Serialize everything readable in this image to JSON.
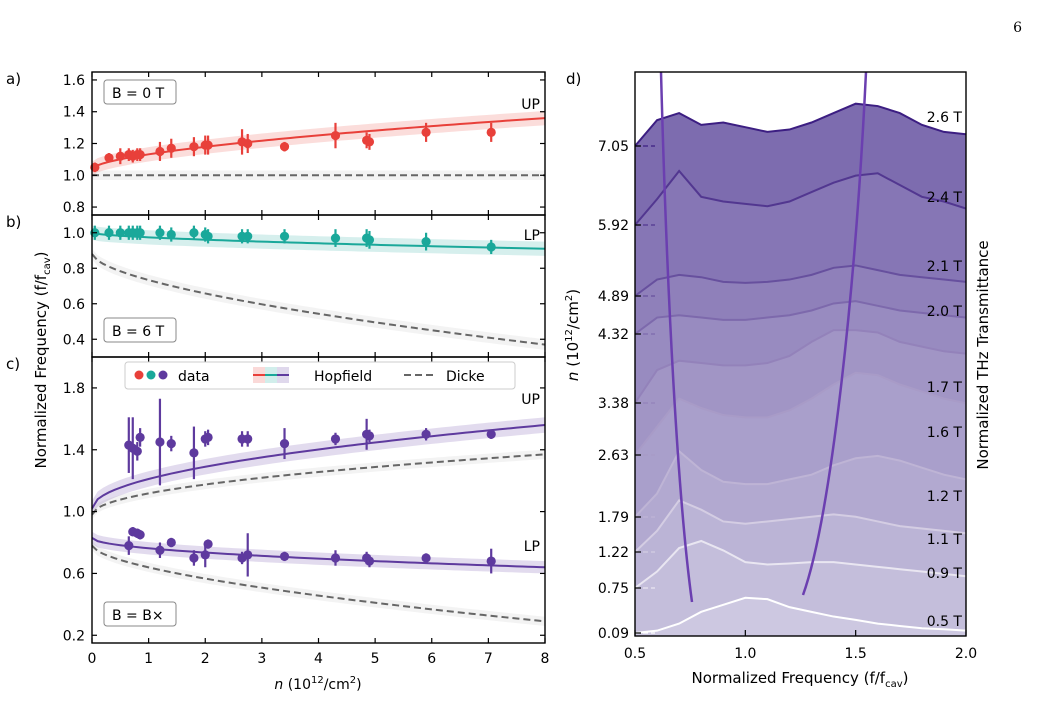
{
  "page_number": "6",
  "chart_data": [
    {
      "type": "scatter",
      "panel_label": "a)",
      "annotation": "B = 0 T",
      "branch_labels": [
        "UP"
      ],
      "ylim": [
        0.75,
        1.65
      ],
      "yticks": [
        "0.8",
        "1.0",
        "1.2",
        "1.4",
        "1.6"
      ],
      "xlim": [
        0,
        8
      ],
      "series": [
        {
          "color": "#e8403a",
          "x": [
            0.05,
            0.3,
            0.5,
            0.65,
            0.72,
            0.8,
            0.85,
            1.2,
            1.4,
            1.8,
            2.0,
            2.05,
            2.65,
            2.75,
            3.4,
            4.3,
            4.85,
            4.9,
            5.9,
            7.05
          ],
          "y": [
            1.05,
            1.11,
            1.12,
            1.13,
            1.12,
            1.13,
            1.13,
            1.15,
            1.17,
            1.18,
            1.19,
            1.19,
            1.21,
            1.2,
            1.18,
            1.25,
            1.22,
            1.21,
            1.27,
            1.27
          ],
          "yerr": [
            0.03,
            0.03,
            0.05,
            0.04,
            0.04,
            0.04,
            0.04,
            0.06,
            0.06,
            0.06,
            0.06,
            0.06,
            0.08,
            0.06,
            0.03,
            0.08,
            0.05,
            0.05,
            0.06,
            0.06
          ]
        }
      ],
      "hopfield": [
        {
          "color": "#e8403a",
          "y0": 1.04,
          "y8": 1.36,
          "band": 0.045
        }
      ],
      "dicke": [
        {
          "y0": 1.0,
          "y8": 1.0
        }
      ]
    },
    {
      "type": "scatter",
      "panel_label": "b)",
      "annotation": "B = 6 T",
      "branch_labels": [
        "LP"
      ],
      "ylim": [
        0.3,
        1.1
      ],
      "yticks": [
        "0.4",
        "0.6",
        "0.8",
        "1.0"
      ],
      "xlim": [
        0,
        8
      ],
      "series": [
        {
          "color": "#1aa89a",
          "x": [
            0.05,
            0.3,
            0.5,
            0.65,
            0.72,
            0.8,
            0.85,
            1.2,
            1.4,
            1.8,
            2.0,
            2.05,
            2.65,
            2.75,
            3.4,
            4.3,
            4.85,
            4.9,
            5.9,
            7.05
          ],
          "y": [
            1.0,
            1.0,
            1.0,
            1.0,
            1.0,
            1.0,
            1.0,
            1.0,
            0.99,
            1.0,
            0.99,
            0.98,
            0.98,
            0.98,
            0.98,
            0.97,
            0.97,
            0.96,
            0.95,
            0.92
          ],
          "yerr": [
            0.04,
            0.04,
            0.04,
            0.04,
            0.04,
            0.04,
            0.04,
            0.04,
            0.04,
            0.04,
            0.04,
            0.04,
            0.04,
            0.04,
            0.04,
            0.05,
            0.05,
            0.05,
            0.05,
            0.04
          ]
        }
      ],
      "hopfield": [
        {
          "color": "#1aa89a",
          "y0": 1.0,
          "y8": 0.91,
          "band": 0.04
        }
      ],
      "dicke": [
        {
          "y0": 0.88,
          "y8": 0.37
        }
      ]
    },
    {
      "type": "scatter",
      "panel_label": "c)",
      "annotation": "B = B×",
      "branch_labels": [
        "UP",
        "LP"
      ],
      "ylim": [
        0.15,
        2.0
      ],
      "yticks": [
        "0.2",
        "0.6",
        "1.0",
        "1.4",
        "1.8"
      ],
      "xlim": [
        0,
        8
      ],
      "xticks": [
        "0",
        "1",
        "2",
        "3",
        "4",
        "5",
        "6",
        "7",
        "8"
      ],
      "series": [
        {
          "name": "UP",
          "color": "#5e3a9e",
          "x": [
            0.65,
            0.72,
            0.8,
            0.85,
            1.2,
            1.4,
            1.8,
            2.0,
            2.05,
            2.65,
            2.75,
            3.4,
            4.3,
            4.85,
            4.9,
            5.9,
            7.05
          ],
          "y": [
            1.43,
            1.41,
            1.39,
            1.48,
            1.45,
            1.44,
            1.38,
            1.47,
            1.48,
            1.47,
            1.47,
            1.44,
            1.47,
            1.5,
            1.49,
            1.5,
            1.5
          ],
          "yerr": [
            0.18,
            0.2,
            0.06,
            0.06,
            0.28,
            0.05,
            0.17,
            0.05,
            0.05,
            0.05,
            0.05,
            0.1,
            0.04,
            0.1,
            0.04,
            0.04,
            0.03
          ]
        },
        {
          "name": "LP",
          "color": "#5e3a9e",
          "x": [
            0.65,
            0.72,
            0.8,
            0.85,
            1.2,
            1.4,
            1.8,
            2.0,
            2.05,
            2.65,
            2.75,
            3.4,
            4.3,
            4.85,
            4.9,
            5.9,
            7.05
          ],
          "y": [
            0.78,
            0.87,
            0.86,
            0.85,
            0.75,
            0.8,
            0.7,
            0.72,
            0.79,
            0.7,
            0.72,
            0.71,
            0.7,
            0.7,
            0.68,
            0.7,
            0.68
          ],
          "yerr": [
            0.06,
            0.03,
            0.03,
            0.03,
            0.05,
            0.03,
            0.05,
            0.08,
            0.03,
            0.04,
            0.14,
            0.03,
            0.05,
            0.04,
            0.04,
            0.03,
            0.08
          ]
        }
      ],
      "hopfield": [
        {
          "color": "#5e3a9e",
          "y0": 1.02,
          "y8": 1.56,
          "band": 0.05,
          "sqrt": true
        },
        {
          "color": "#5e3a9e",
          "y0": 0.83,
          "y8": 0.64,
          "band": 0.04,
          "sqrt": true
        }
      ],
      "dicke": [
        {
          "y0": 0.98,
          "y8": 1.37,
          "sqrt": true
        },
        {
          "y0": 0.78,
          "y8": 0.29
        }
      ],
      "legend": [
        {
          "label": "data",
          "markers": [
            "#e8403a",
            "#1aa89a",
            "#5e3a9e"
          ]
        },
        {
          "label": "Hopfield",
          "colors": [
            "#e8403a",
            "#1aa89a",
            "#5e3a9e"
          ]
        },
        {
          "label": "Dicke",
          "style": "dashed"
        }
      ]
    },
    {
      "type": "area",
      "panel_label": "d)",
      "xlabel": "Normalized Frequency (f/f",
      "xlabel_sub": "cav",
      "xticks": [
        "0.5",
        "1.0",
        "1.5",
        "2.0"
      ],
      "xlim": [
        0.5,
        2.0
      ],
      "ylabel": "n (10",
      "ylabel_sup": "12",
      "ylabel_tail": "/cm",
      "ylabel_sup2": "2",
      "ylabel_end": ")",
      "right_label": "Normalized THz Transmittance",
      "density_ticks": [
        "0.09",
        "0.75",
        "1.22",
        "1.79",
        "2.63",
        "3.38",
        "4.32",
        "4.89",
        "5.92",
        "7.05"
      ],
      "x": [
        0.5,
        0.6,
        0.7,
        0.8,
        0.9,
        1.0,
        1.1,
        1.2,
        1.3,
        1.4,
        1.5,
        1.6,
        1.7,
        1.8,
        1.9,
        2.0
      ],
      "curves": [
        {
          "field": "0.5 T",
          "y": [
            0.0,
            0.05,
            0.2,
            0.45,
            0.6,
            0.75,
            0.72,
            0.55,
            0.45,
            0.35,
            0.28,
            0.2,
            0.15,
            0.1,
            0.08,
            0.05
          ]
        },
        {
          "field": "0.9 T",
          "y": [
            0.0,
            0.35,
            0.85,
            1.0,
            0.8,
            0.55,
            0.5,
            0.52,
            0.55,
            0.55,
            0.5,
            0.45,
            0.4,
            0.35,
            0.3,
            0.25
          ]
        },
        {
          "field": "1.1 T",
          "y": [
            0.0,
            0.45,
            1.1,
            0.9,
            0.65,
            0.6,
            0.65,
            0.7,
            0.75,
            0.8,
            0.75,
            0.65,
            0.55,
            0.5,
            0.45,
            0.4
          ]
        },
        {
          "field": "1.2 T",
          "y": [
            0.0,
            0.5,
            1.4,
            1.0,
            0.75,
            0.7,
            0.7,
            0.8,
            0.9,
            1.1,
            1.25,
            1.3,
            1.2,
            1.05,
            0.9,
            0.8
          ]
        },
        {
          "field": "1.6 T",
          "y": [
            0.0,
            0.6,
            1.2,
            1.0,
            0.85,
            0.8,
            0.8,
            0.95,
            1.2,
            1.5,
            1.75,
            1.7,
            1.5,
            1.35,
            1.2,
            1.1
          ]
        },
        {
          "field": "1.7 T",
          "y": [
            0.0,
            0.7,
            0.9,
            0.85,
            0.8,
            0.8,
            0.85,
            1.0,
            1.3,
            1.55,
            1.55,
            1.5,
            1.3,
            1.2,
            1.1,
            1.05
          ]
        },
        {
          "field": "2.0 T",
          "y": [
            0.0,
            0.35,
            0.4,
            0.35,
            0.3,
            0.3,
            0.35,
            0.4,
            0.5,
            0.65,
            0.7,
            0.6,
            0.5,
            0.45,
            0.4,
            0.35
          ]
        },
        {
          "field": "2.1 T",
          "y": [
            0.0,
            0.35,
            0.45,
            0.4,
            0.3,
            0.28,
            0.3,
            0.35,
            0.45,
            0.6,
            0.65,
            0.55,
            0.45,
            0.4,
            0.35,
            0.3
          ]
        },
        {
          "field": "2.4 T",
          "y": [
            0.0,
            0.55,
            1.15,
            0.6,
            0.5,
            0.45,
            0.4,
            0.5,
            0.7,
            0.9,
            1.05,
            1.1,
            0.85,
            0.6,
            0.5,
            0.35
          ]
        },
        {
          "field": "2.6 T",
          "y": [
            0.0,
            0.55,
            0.7,
            0.45,
            0.5,
            0.4,
            0.3,
            0.35,
            0.5,
            0.7,
            0.9,
            0.85,
            0.7,
            0.45,
            0.3,
            0.25
          ]
        }
      ]
    }
  ],
  "shared_labels": {
    "ylabel_left": "Normalized Frequency (f/f",
    "ylabel_left_sub": "cav",
    "xlabel_left": "(10",
    "xlabel_left_var": "n",
    "xlabel_left_sup": "12",
    "xlabel_left_tail": "/cm",
    "xlabel_left_sup2": "2",
    "xlabel_left_end": ")"
  }
}
